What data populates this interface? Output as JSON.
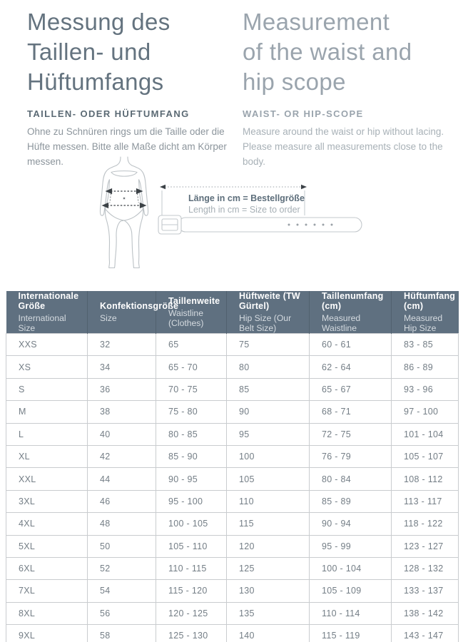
{
  "intro": {
    "de": {
      "title": "Messung des\nTaillen- und\nHüftumfangs",
      "subtitle": "TAILLEN- ODER HÜFTUMFANG",
      "body": "Ohne zu Schnüren rings um die Taille oder die Hüfte messen. Bitte alle Maße dicht am Körper messen."
    },
    "en": {
      "title": "Measurement\nof the waist and\nhip scope",
      "subtitle": "WAIST- OR HIP-SCOPE",
      "body": "Measure around the waist or hip without lacing. Please measure all measurements close to the body."
    }
  },
  "diagram": {
    "icons": [
      "body-outline-with-waist-and-hip-arrows-icon",
      "belt-with-buckle-and-holes-icon",
      "length-measure-dotted-arrow-icon"
    ],
    "belt_label_de": "Länge in cm = Bestellgröße",
    "belt_label_en": "Length in cm = Size to order"
  },
  "table": {
    "columns": [
      {
        "de": "Internationale Größe",
        "en": "International Size"
      },
      {
        "de": "Konfektionsgröße",
        "en": "Size"
      },
      {
        "de": "Taillenweite",
        "en": "Waistline (Clothes)"
      },
      {
        "de": "Hüftweite (TW Gürtel)",
        "en": "Hip Size (Our Belt Size)"
      },
      {
        "de": "Taillenumfang (cm)",
        "en": "Measured Waistline"
      },
      {
        "de": "Hüftumfang (cm)",
        "en": "Measured Hip Size"
      }
    ],
    "rows": [
      [
        "XXS",
        "32",
        "65",
        "75",
        "60 - 61",
        "83 - 85"
      ],
      [
        "XS",
        "34",
        "65 - 70",
        "80",
        "62 - 64",
        "86 - 89"
      ],
      [
        "S",
        "36",
        "70 - 75",
        "85",
        "65 - 67",
        "93 - 96"
      ],
      [
        "M",
        "38",
        "75 - 80",
        "90",
        "68 - 71",
        "97 - 100"
      ],
      [
        "L",
        "40",
        "80 - 85",
        "95",
        "72 - 75",
        "101 - 104"
      ],
      [
        "XL",
        "42",
        "85 - 90",
        "100",
        "76 - 79",
        "105 - 107"
      ],
      [
        "XXL",
        "44",
        "90 - 95",
        "105",
        "80 - 84",
        "108 - 112"
      ],
      [
        "3XL",
        "46",
        "95 - 100",
        "110",
        "85 - 89",
        "113 - 117"
      ],
      [
        "4XL",
        "48",
        "100 - 105",
        "115",
        "90 - 94",
        "118 - 122"
      ],
      [
        "5XL",
        "50",
        "105 - 110",
        "120",
        "95 - 99",
        "123 - 127"
      ],
      [
        "6XL",
        "52",
        "110 - 115",
        "125",
        "100 - 104",
        "128 - 132"
      ],
      [
        "7XL",
        "54",
        "115 - 120",
        "130",
        "105 - 109",
        "133 - 137"
      ],
      [
        "8XL",
        "56",
        "120 - 125",
        "135",
        "110 - 114",
        "138 - 142"
      ],
      [
        "9XL",
        "58",
        "125 - 130",
        "140",
        "115 - 119",
        "143 - 147"
      ]
    ]
  },
  "colors": {
    "heading_de": "#64737f",
    "heading_en": "#9aa4ad",
    "body_de": "#8c959c",
    "body_en": "#a8b1b7",
    "table_header_bg": "#5f7080",
    "table_header_text": "#ffffff",
    "table_cell_text": "#747e86",
    "table_grid": "#c9cccf",
    "illustration_outline": "#bcc2c6",
    "arrow_dark": "#3c4247"
  }
}
